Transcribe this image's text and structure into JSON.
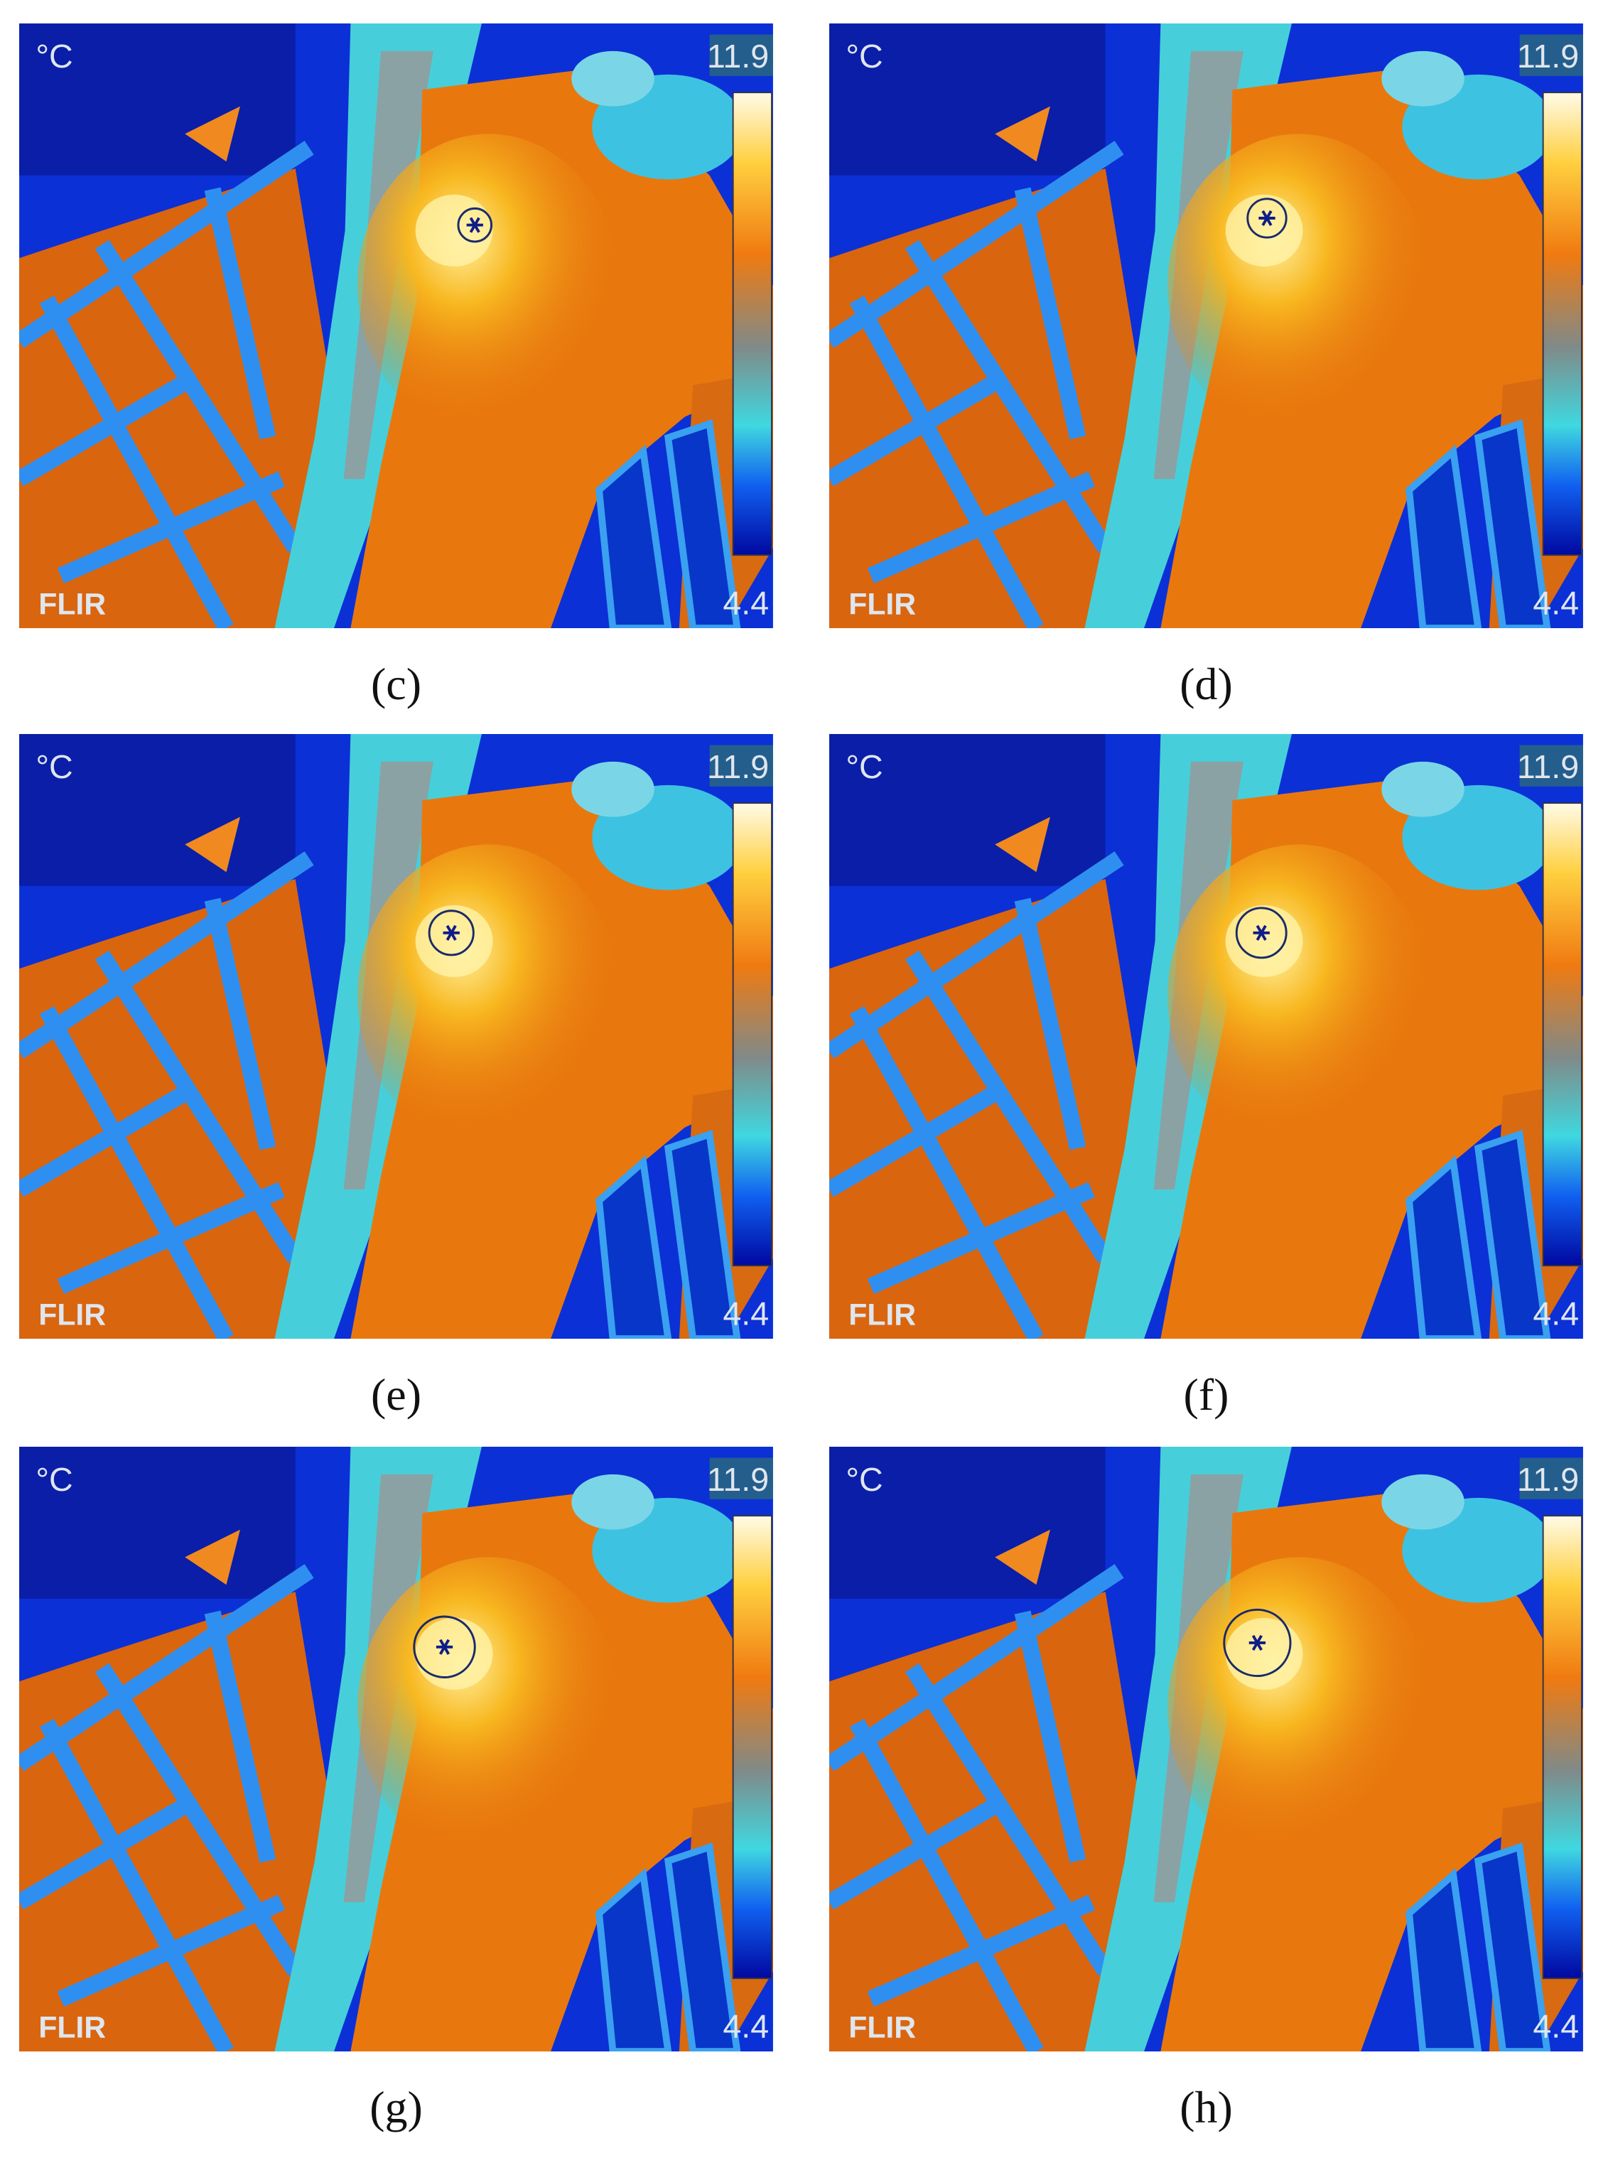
{
  "figure": {
    "panels": [
      {
        "label": "(c)",
        "unit": "°C",
        "max": "11.9",
        "min": "4.4",
        "brand": "FLIR"
      },
      {
        "label": "(d)",
        "unit": "°C",
        "max": "11.9",
        "min": "4.4",
        "brand": "FLIR"
      },
      {
        "label": "(e)",
        "unit": "°C",
        "max": "11.9",
        "min": "4.4",
        "brand": "FLIR"
      },
      {
        "label": "(f)",
        "unit": "°C",
        "max": "11.9",
        "min": "4.4",
        "brand": "FLIR"
      },
      {
        "label": "(g)",
        "unit": "°C",
        "max": "11.9",
        "min": "4.4",
        "brand": "FLIR"
      },
      {
        "label": "(h)",
        "unit": "°C",
        "max": "11.9",
        "min": "4.4",
        "brand": "FLIR"
      }
    ]
  }
}
